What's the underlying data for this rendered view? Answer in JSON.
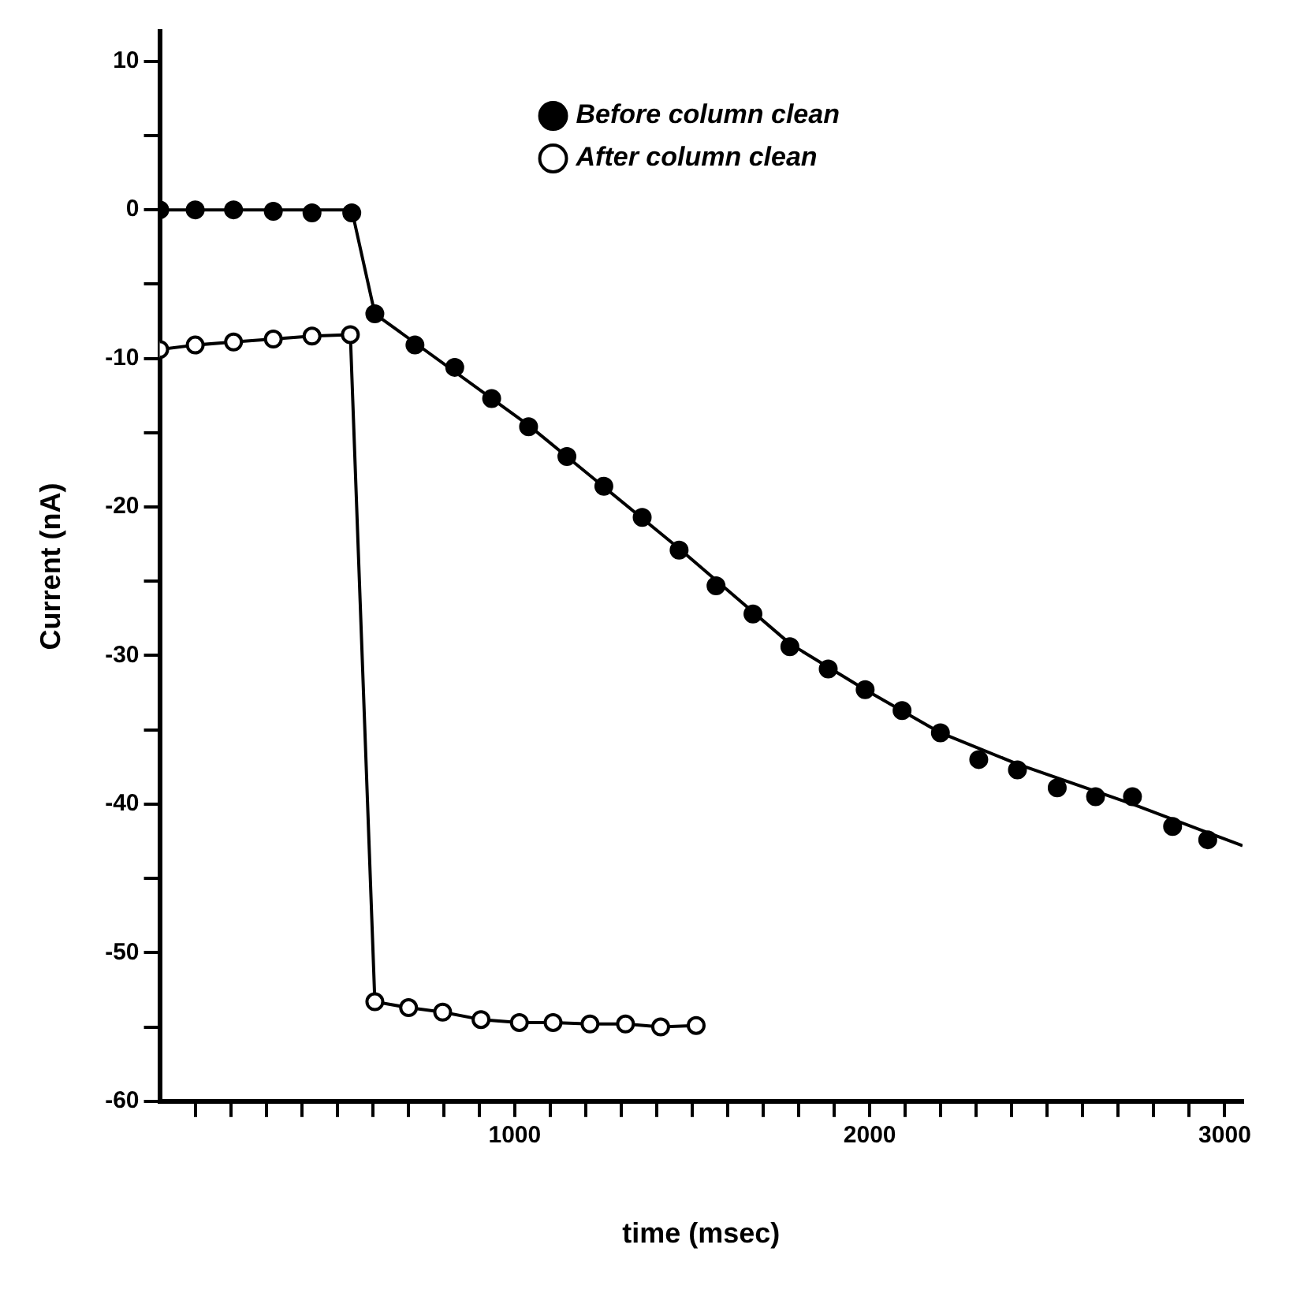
{
  "chart_data": {
    "type": "line",
    "xlabel": "time (msec)",
    "ylabel": "Current (nA)",
    "xlim": [
      0,
      3050
    ],
    "ylim": [
      -60,
      12
    ],
    "xticks": [
      {
        "value": 100,
        "label": null
      },
      {
        "value": 200,
        "label": null
      },
      {
        "value": 300,
        "label": null
      },
      {
        "value": 400,
        "label": null
      },
      {
        "value": 500,
        "label": null
      },
      {
        "value": 600,
        "label": null
      },
      {
        "value": 700,
        "label": null
      },
      {
        "value": 800,
        "label": null
      },
      {
        "value": 900,
        "label": null
      },
      1000,
      {
        "value": 1100,
        "label": null
      },
      {
        "value": 1200,
        "label": null
      },
      {
        "value": 1300,
        "label": null
      },
      {
        "value": 1400,
        "label": null
      },
      {
        "value": 1500,
        "label": null
      },
      {
        "value": 1600,
        "label": null
      },
      {
        "value": 1700,
        "label": null
      },
      {
        "value": 1800,
        "label": null
      },
      {
        "value": 1900,
        "label": null
      },
      2000,
      {
        "value": 2100,
        "label": null
      },
      {
        "value": 2200,
        "label": null
      },
      {
        "value": 2300,
        "label": null
      },
      {
        "value": 2400,
        "label": null
      },
      {
        "value": 2500,
        "label": null
      },
      {
        "value": 2600,
        "label": null
      },
      {
        "value": 2700,
        "label": null
      },
      {
        "value": 2800,
        "label": null
      },
      {
        "value": 2900,
        "label": null
      },
      3000
    ],
    "yticks": [
      -60,
      {
        "value": -55,
        "label": null
      },
      -50,
      {
        "value": -45,
        "label": null
      },
      -40,
      {
        "value": -35,
        "label": null
      },
      -30,
      {
        "value": -25,
        "label": null
      },
      -20,
      {
        "value": -15,
        "label": null
      },
      -10,
      {
        "value": -5,
        "label": null
      },
      0,
      {
        "value": 5,
        "label": null
      },
      10
    ],
    "grid": false,
    "legend": "top right",
    "series": [
      {
        "name": "Before column clean",
        "type": "scatter",
        "marker": "circle",
        "color": "#000000",
        "x": [
          0,
          100,
          208,
          320,
          429,
          541,
          606,
          719,
          831,
          935,
          1039,
          1147,
          1251,
          1359,
          1463,
          1567,
          1671,
          1775,
          1883,
          1987,
          2091,
          2199,
          2307,
          2416,
          2528,
          2636,
          2740,
          2853,
          2952
        ],
        "values": [
          0,
          0,
          0,
          -0.1,
          -0.2,
          -0.2,
          -7.0,
          -9.1,
          -10.6,
          -12.7,
          -14.6,
          -16.6,
          -18.6,
          -20.7,
          -22.9,
          -25.3,
          -27.2,
          -29.4,
          -30.9,
          -32.3,
          -33.7,
          -35.2,
          -37.0,
          -37.7,
          -38.9,
          -39.5,
          -39.5,
          -41.5,
          -42.4
        ]
      },
      {
        "marker": "none",
        "color": "#000000",
        "x": [
          0,
          541,
          606,
          1039,
          1463,
          1775,
          1987,
          2199,
          2416,
          2740,
          3050
        ],
        "values": [
          0,
          0,
          -7.0,
          -14.5,
          -22.8,
          -29.2,
          -32.3,
          -35.2,
          -37.3,
          -40.0,
          -42.8
        ]
      },
      {
        "name": "After column clean",
        "marker": "circle",
        "color": "#000000",
        "x": [
          0,
          100,
          208,
          320,
          429,
          537,
          606,
          701,
          797,
          905,
          1013,
          1108,
          1212,
          1312,
          1411,
          1511
        ],
        "values": [
          -9.4,
          -9.1,
          -8.9,
          -8.7,
          -8.5,
          -8.4,
          -53.3,
          -53.7,
          -54.0,
          -54.5,
          -54.7,
          -54.7,
          -54.8,
          -54.8,
          -55.0,
          -54.9
        ]
      }
    ]
  }
}
